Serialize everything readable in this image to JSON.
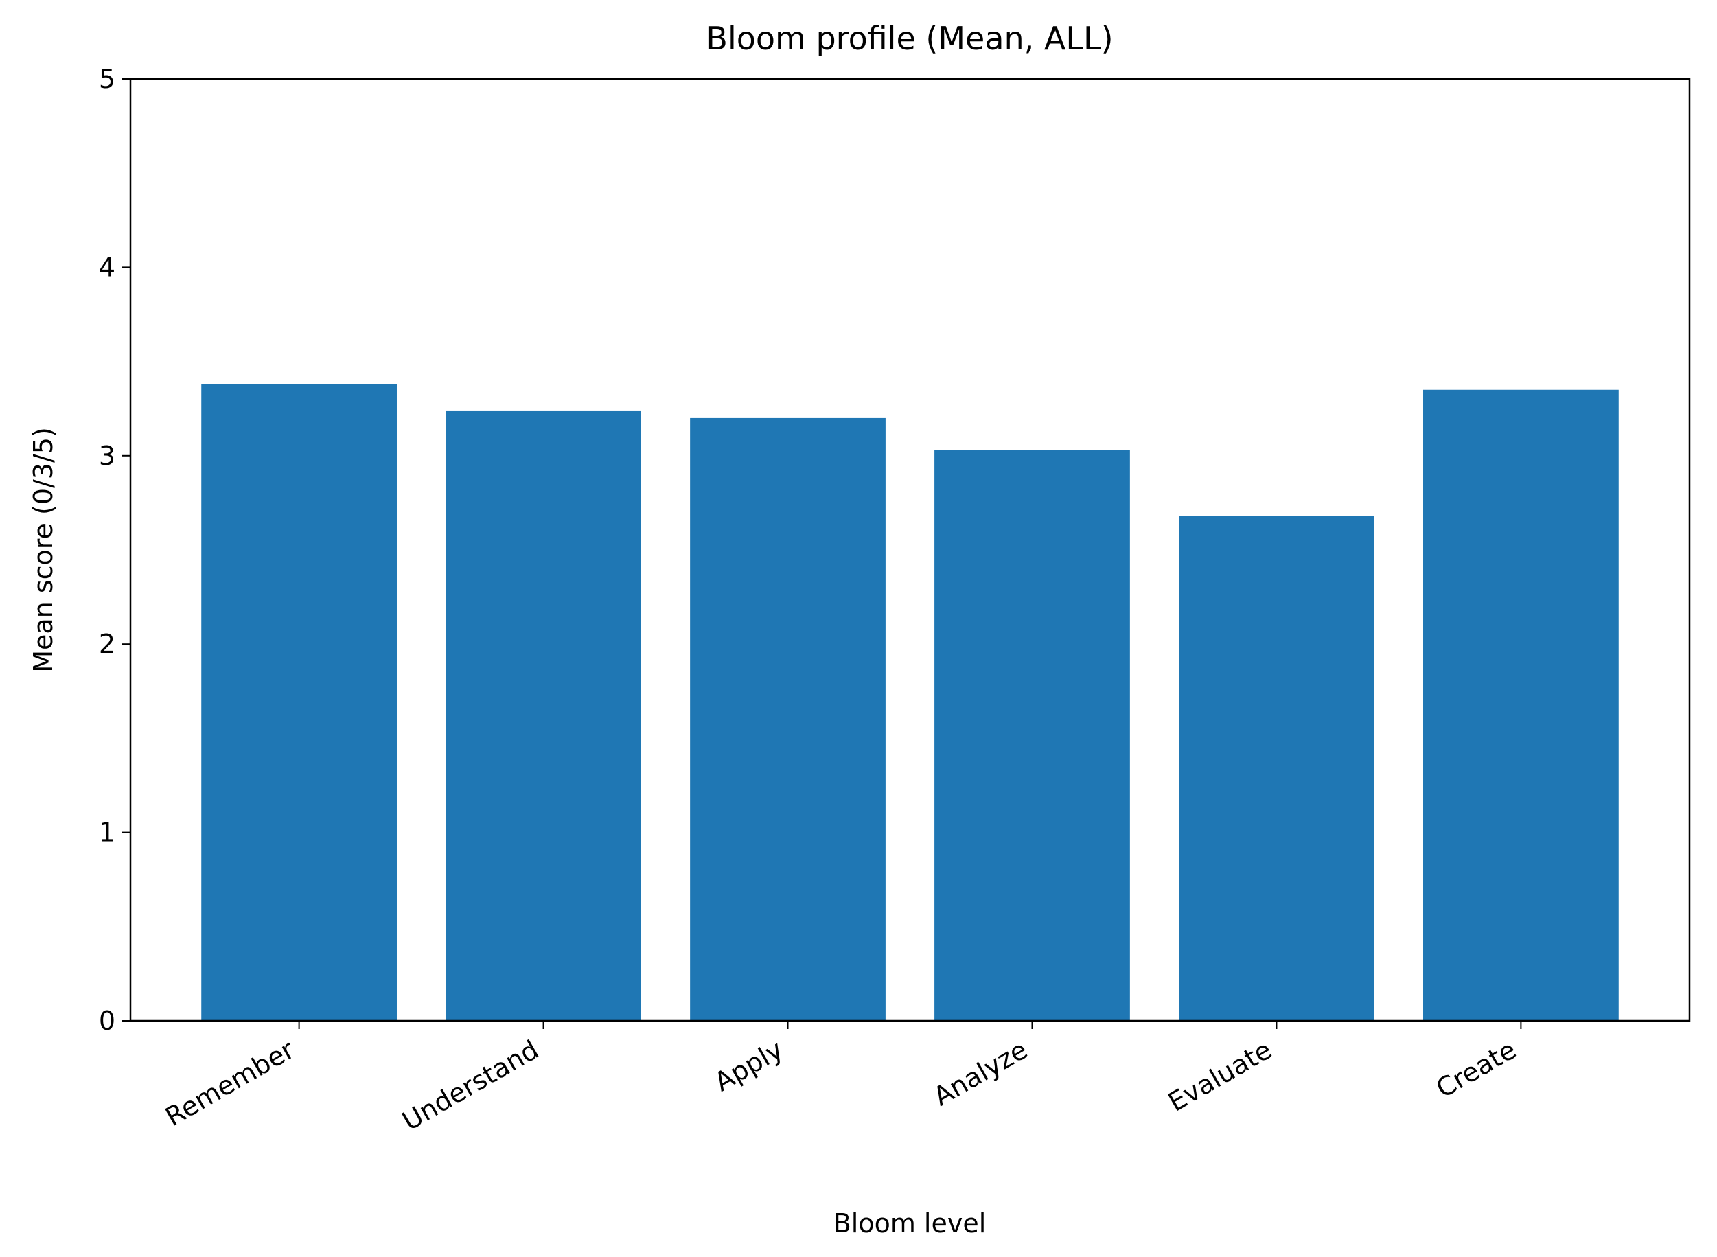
{
  "chart_data": {
    "type": "bar",
    "title": "Bloom profile (Mean, ALL)",
    "x_label": "Bloom level",
    "y_label": "Mean score (0/3/5)",
    "categories": [
      "Remember",
      "Understand",
      "Apply",
      "Analyze",
      "Evaluate",
      "Create"
    ],
    "values": [
      3.38,
      3.24,
      3.2,
      3.03,
      2.68,
      3.35
    ],
    "color": "#1f77b4",
    "ylim": [
      0,
      5
    ],
    "yticks": [
      0,
      1,
      2,
      3,
      4,
      5
    ],
    "grid": false
  }
}
